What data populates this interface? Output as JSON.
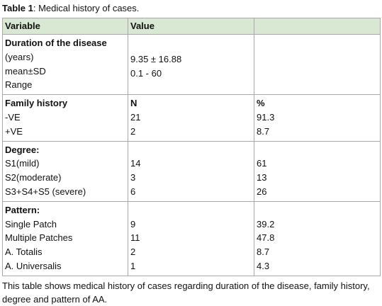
{
  "caption": {
    "label": "Table 1",
    "text": ": Medical history of cases."
  },
  "table": {
    "header": [
      "Variable",
      "Value"
    ],
    "duration": {
      "heading": "Duration of the disease",
      "labels": [
        "(years)",
        "mean±SD",
        "Range"
      ],
      "values": [
        "9.35 ± 16.88",
        "0.1 - 60"
      ]
    },
    "family": {
      "heading": "Family history",
      "col2": "N",
      "col3": "%",
      "rows": [
        [
          "-VE",
          "21",
          "91.3"
        ],
        [
          "+VE",
          "2",
          "8.7"
        ]
      ]
    },
    "degree": {
      "heading": "Degree:",
      "rows": [
        [
          "S1(mild)",
          "14",
          "61"
        ],
        [
          "S2(moderate)",
          "3",
          "13"
        ],
        [
          "S3+S4+S5 (severe)",
          "6",
          "26"
        ]
      ]
    },
    "pattern": {
      "heading": "Pattern:",
      "rows": [
        [
          "Single Patch",
          "9",
          "39.2"
        ],
        [
          "Multiple Patches",
          "11",
          "47.8"
        ],
        [
          "A. Totalis",
          "2",
          "8.7"
        ],
        [
          "A. Universalis",
          "1",
          "4.3"
        ]
      ]
    }
  },
  "note": "This table shows medical history of cases regarding duration of the disease, family history, degree and pattern of AA."
}
